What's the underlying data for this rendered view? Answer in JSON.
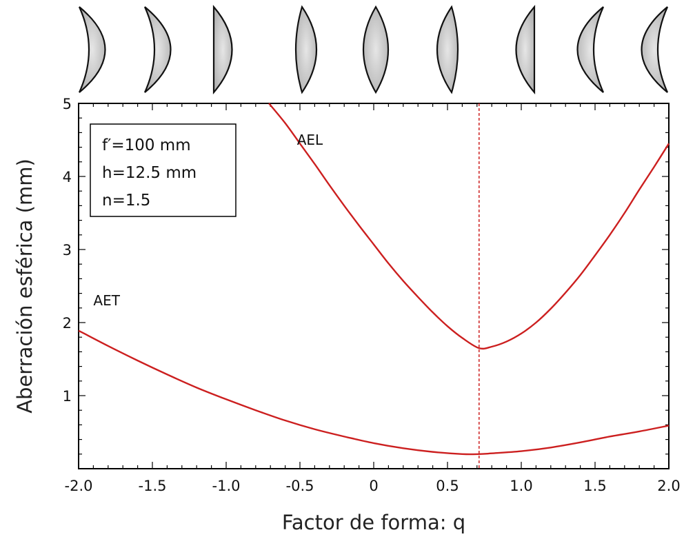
{
  "chart_data": {
    "type": "line",
    "xlabel": "Factor de forma: q",
    "ylabel": "Aberración esférica (mm)",
    "xlim": [
      -2.0,
      2.0
    ],
    "ylim": [
      0,
      5
    ],
    "x_ticks": [
      -2.0,
      -1.5,
      -1.0,
      -0.5,
      0,
      0.5,
      1.0,
      1.5,
      2.0
    ],
    "x_tick_labels": [
      "-2.0",
      "-1.5",
      "-1.0",
      "-0.5",
      "0",
      "0.5",
      "1.0",
      "1.5",
      "2.0"
    ],
    "y_ticks": [
      1,
      2,
      3,
      4,
      5
    ],
    "y_tick_labels": [
      "1",
      "2",
      "3",
      "4",
      "5"
    ],
    "grid": false,
    "colors": {
      "series": "#cc1f1f",
      "frame": "#000000",
      "lens_fill": "#c4c4c4"
    },
    "series": [
      {
        "name": "AEL",
        "x": [
          -0.71,
          -0.6,
          -0.5,
          -0.4,
          -0.3,
          -0.2,
          -0.1,
          0.0,
          0.1,
          0.2,
          0.3,
          0.4,
          0.5,
          0.6,
          0.714,
          0.8,
          0.9,
          1.0,
          1.1,
          1.2,
          1.3,
          1.4,
          1.5,
          1.6,
          1.7,
          1.8,
          1.9,
          2.0
        ],
        "y": [
          5.0,
          4.73,
          4.45,
          4.17,
          3.88,
          3.6,
          3.33,
          3.07,
          2.81,
          2.57,
          2.35,
          2.14,
          1.95,
          1.79,
          1.65,
          1.67,
          1.74,
          1.85,
          2.0,
          2.19,
          2.41,
          2.65,
          2.92,
          3.2,
          3.5,
          3.82,
          4.13,
          4.45
        ]
      },
      {
        "name": "AET",
        "x": [
          -2.0,
          -1.8,
          -1.6,
          -1.4,
          -1.2,
          -1.0,
          -0.8,
          -0.6,
          -0.4,
          -0.2,
          0.0,
          0.2,
          0.4,
          0.6,
          0.714,
          0.8,
          1.0,
          1.2,
          1.4,
          1.6,
          1.8,
          2.0
        ],
        "y": [
          1.89,
          1.68,
          1.48,
          1.29,
          1.11,
          0.95,
          0.8,
          0.66,
          0.54,
          0.44,
          0.35,
          0.28,
          0.23,
          0.2,
          0.2,
          0.21,
          0.24,
          0.29,
          0.36,
          0.44,
          0.51,
          0.59
        ]
      }
    ],
    "reference_line": {
      "x": 0.714,
      "style": "dashed"
    },
    "annotations": [
      {
        "text": "AEL",
        "x": -0.52,
        "y": 4.5
      },
      {
        "text": "AET",
        "x": -1.9,
        "y": 2.3
      }
    ],
    "legend_box": {
      "lines": [
        "f′=100 mm",
        "h=12.5 mm",
        "n=1.5"
      ],
      "placement": "top-left"
    },
    "lens_shapes": [
      "meniscus",
      "meniscus",
      "plano-convex",
      "biconvex",
      "equiconvex",
      "biconvex",
      "plano-convex",
      "meniscus",
      "meniscus"
    ]
  }
}
